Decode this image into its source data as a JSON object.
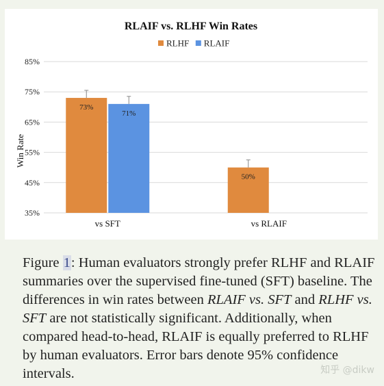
{
  "chart_data": {
    "type": "bar",
    "title": "RLAIF vs. RLHF Win Rates",
    "ylabel": "Win Rate",
    "xlabel": "",
    "categories": [
      "vs SFT",
      "vs RLAIF"
    ],
    "yticks": [
      "35%",
      "45%",
      "55%",
      "65%",
      "75%",
      "85%"
    ],
    "ylim": [
      35,
      85
    ],
    "grid": true,
    "legend_position": "top-center",
    "series": [
      {
        "name": "RLHF",
        "color": "#e08a3e",
        "values": [
          73,
          50
        ],
        "labels": [
          "73%",
          "50%"
        ],
        "error": [
          2.5,
          2.5
        ]
      },
      {
        "name": "RLAIF",
        "color": "#5b93e1",
        "values": [
          71,
          null
        ],
        "labels": [
          "71%",
          null
        ],
        "error": [
          2.5,
          null
        ]
      }
    ]
  },
  "caption": {
    "figure_label": "Figure ",
    "figure_number": "1",
    "part1": ": Human evaluators strongly prefer RLHF and RLAIF summaries over the supervised fine-tuned (SFT) baseline. The differences in win rates between ",
    "em1": "RLAIF vs. SFT",
    "part2": " and ",
    "em2": "RLHF vs. SFT",
    "part3": " are not statistically significant. Additionally, when compared head-to-head, RLAIF is equally preferred to RLHF by human evaluators. Error bars denote 95% confidence intervals."
  },
  "watermark": "知乎 @dikw"
}
